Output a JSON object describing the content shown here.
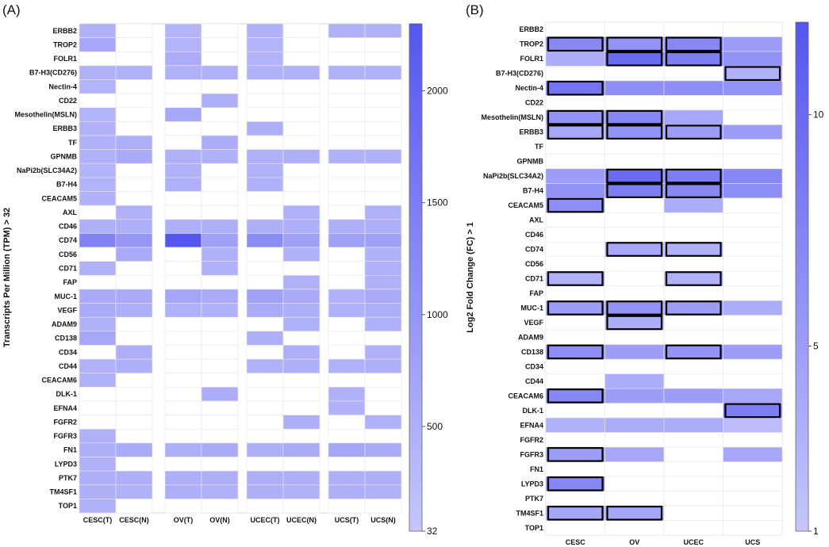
{
  "chart_data": [
    {
      "type": "heatmap",
      "panel_label": "(A)",
      "ylabel": "Transcripts Per Million (TPM) > 32",
      "columns": [
        "CESC(T)",
        "CESC(N)",
        "OV(T)",
        "OV(N)",
        "UCEC(T)",
        "UCEC(N)",
        "UCS(T)",
        "UCS(N)"
      ],
      "rows": [
        "ERBB2",
        "TROP2",
        "FOLR1",
        "B7-H3(CD276)",
        "Nectin-4",
        "CD22",
        "Mesothelin(MSLN)",
        "ERBB3",
        "TF",
        "GPNMB",
        "NaPi2b(SLC34A2)",
        "B7-H4",
        "CEACAM5",
        "AXL",
        "CD46",
        "CD74",
        "CD56",
        "CD71",
        "FAP",
        "MUC-1",
        "VEGF",
        "ADAM9",
        "CD138",
        "CD34",
        "CD44",
        "CEACAM6",
        "DLK-1",
        "EFNA4",
        "FGFR2",
        "FGFR3",
        "FN1",
        "LYPD3",
        "PTK7",
        "TM4SF1",
        "TOP1"
      ],
      "values": [
        [
          450,
          0,
          400,
          0,
          450,
          0,
          450,
          450
        ],
        [
          650,
          0,
          420,
          0,
          420,
          0,
          0,
          0
        ],
        [
          0,
          0,
          550,
          0,
          420,
          0,
          0,
          0
        ],
        [
          450,
          450,
          450,
          450,
          450,
          450,
          450,
          450
        ],
        [
          420,
          0,
          0,
          0,
          0,
          0,
          0,
          0
        ],
        [
          0,
          0,
          0,
          500,
          0,
          0,
          0,
          0
        ],
        [
          420,
          0,
          650,
          0,
          0,
          0,
          0,
          0
        ],
        [
          450,
          0,
          0,
          0,
          500,
          0,
          0,
          0
        ],
        [
          450,
          500,
          0,
          550,
          0,
          0,
          0,
          0
        ],
        [
          450,
          600,
          450,
          450,
          450,
          500,
          450,
          450
        ],
        [
          420,
          0,
          450,
          0,
          450,
          0,
          0,
          0
        ],
        [
          420,
          0,
          450,
          0,
          450,
          0,
          0,
          0
        ],
        [
          450,
          0,
          0,
          0,
          0,
          0,
          0,
          0
        ],
        [
          0,
          450,
          0,
          0,
          0,
          450,
          0,
          450
        ],
        [
          500,
          500,
          500,
          500,
          500,
          500,
          500,
          500
        ],
        [
          1400,
          1000,
          2300,
          800,
          1200,
          800,
          800,
          800
        ],
        [
          0,
          600,
          0,
          450,
          0,
          450,
          0,
          450
        ],
        [
          450,
          0,
          0,
          450,
          0,
          0,
          0,
          450
        ],
        [
          0,
          0,
          0,
          0,
          0,
          450,
          0,
          450
        ],
        [
          600,
          600,
          700,
          600,
          800,
          600,
          450,
          600
        ],
        [
          600,
          500,
          450,
          450,
          600,
          500,
          450,
          500
        ],
        [
          450,
          0,
          0,
          0,
          0,
          450,
          0,
          450
        ],
        [
          650,
          0,
          0,
          0,
          500,
          0,
          0,
          0
        ],
        [
          0,
          500,
          0,
          0,
          0,
          500,
          0,
          450
        ],
        [
          450,
          500,
          0,
          0,
          450,
          500,
          450,
          500
        ],
        [
          450,
          0,
          0,
          0,
          0,
          0,
          0,
          0
        ],
        [
          0,
          0,
          0,
          550,
          0,
          0,
          450,
          0
        ],
        [
          0,
          0,
          0,
          0,
          0,
          0,
          450,
          0
        ],
        [
          0,
          0,
          0,
          0,
          0,
          500,
          0,
          450
        ],
        [
          450,
          0,
          0,
          0,
          0,
          0,
          0,
          0
        ],
        [
          500,
          600,
          500,
          600,
          500,
          600,
          700,
          600
        ],
        [
          450,
          0,
          0,
          0,
          0,
          0,
          0,
          0
        ],
        [
          500,
          500,
          500,
          500,
          500,
          500,
          500,
          500
        ],
        [
          500,
          450,
          500,
          450,
          500,
          450,
          500,
          450
        ],
        [
          450,
          0,
          0,
          0,
          0,
          0,
          0,
          0
        ]
      ],
      "colorbar": {
        "min": 32,
        "max": 2300,
        "ticks": [
          32,
          500,
          1000,
          1500,
          2000
        ]
      }
    },
    {
      "type": "heatmap",
      "panel_label": "(B)",
      "ylabel": "Log2 Fold Change (FC) > 1",
      "columns": [
        "CESC",
        "OV",
        "UCEC",
        "UCS"
      ],
      "rows": [
        "ERBB2",
        "TROP2",
        "FOLR1",
        "B7-H3(CD276)",
        "Nectin-4",
        "CD22",
        "Mesothelin(MSLN)",
        "ERBB3",
        "TF",
        "GPNMB",
        "NaPi2b(SLC34A2)",
        "B7-H4",
        "CEACAM5",
        "AXL",
        "CD46",
        "CD74",
        "CD56",
        "CD71",
        "FAP",
        "MUC-1",
        "VEGF",
        "ADAM9",
        "CD138",
        "CD34",
        "CD44",
        "CEACAM6",
        "DLK-1",
        "EFNA4",
        "FGFR2",
        "FGFR3",
        "FN1",
        "LYPD3",
        "PTK7",
        "TM4SF1",
        "TOP1"
      ],
      "values": [
        [
          0,
          0,
          0,
          0
        ],
        [
          7,
          6,
          7,
          5
        ],
        [
          3.5,
          10,
          8,
          6
        ],
        [
          0,
          0,
          0,
          3
        ],
        [
          9,
          6.5,
          6.5,
          6
        ],
        [
          0,
          0,
          0,
          0
        ],
        [
          6,
          7,
          4,
          0
        ],
        [
          4,
          6,
          5,
          5
        ],
        [
          0,
          0,
          0,
          0
        ],
        [
          0,
          0,
          0,
          0
        ],
        [
          5,
          10,
          8,
          7
        ],
        [
          6,
          8,
          7,
          6.5
        ],
        [
          6.5,
          0,
          3.5,
          0
        ],
        [
          0,
          0,
          0,
          0
        ],
        [
          0,
          0,
          0,
          0
        ],
        [
          0,
          4,
          3,
          0
        ],
        [
          0,
          0,
          0,
          0
        ],
        [
          3,
          0,
          3,
          0
        ],
        [
          0,
          0,
          0,
          0
        ],
        [
          5,
          6,
          5,
          3.5
        ],
        [
          0,
          3.5,
          0,
          0
        ],
        [
          0,
          0,
          0,
          0
        ],
        [
          6.5,
          5,
          6,
          5
        ],
        [
          0,
          0,
          0,
          0
        ],
        [
          0,
          3.5,
          0,
          0
        ],
        [
          7,
          5,
          5,
          4
        ],
        [
          0,
          0,
          0,
          8
        ],
        [
          3,
          3.5,
          3.5,
          2
        ],
        [
          0,
          0,
          0,
          0
        ],
        [
          5,
          4,
          0,
          4
        ],
        [
          0,
          0,
          0,
          0
        ],
        [
          7,
          0,
          0,
          0
        ],
        [
          0,
          0,
          0,
          0
        ],
        [
          4,
          4,
          0,
          0
        ],
        [
          0,
          0,
          0,
          0
        ]
      ],
      "highlighted": [
        [
          1,
          0
        ],
        [
          1,
          1
        ],
        [
          1,
          2
        ],
        [
          2,
          1
        ],
        [
          2,
          2
        ],
        [
          3,
          3
        ],
        [
          4,
          0
        ],
        [
          6,
          0
        ],
        [
          6,
          1
        ],
        [
          7,
          0
        ],
        [
          7,
          1
        ],
        [
          7,
          2
        ],
        [
          10,
          1
        ],
        [
          10,
          2
        ],
        [
          11,
          1
        ],
        [
          11,
          2
        ],
        [
          12,
          0
        ],
        [
          15,
          1
        ],
        [
          15,
          2
        ],
        [
          17,
          0
        ],
        [
          17,
          2
        ],
        [
          19,
          0
        ],
        [
          19,
          1
        ],
        [
          19,
          2
        ],
        [
          20,
          1
        ],
        [
          22,
          0
        ],
        [
          22,
          2
        ],
        [
          25,
          0
        ],
        [
          26,
          3
        ],
        [
          29,
          0
        ],
        [
          31,
          0
        ],
        [
          33,
          0
        ],
        [
          33,
          1
        ]
      ],
      "colorbar": {
        "min": 1,
        "max": 12,
        "ticks": [
          1,
          5,
          10
        ]
      }
    }
  ],
  "colors": {
    "low": "#c6c6fb",
    "high": "#5555f0",
    "grid": "#e6e6e6"
  }
}
